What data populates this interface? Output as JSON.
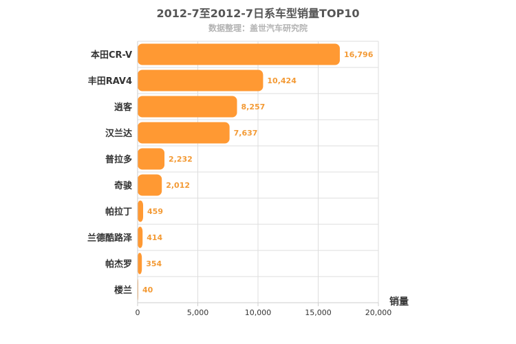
{
  "chart_data": {
    "type": "bar",
    "orientation": "horizontal",
    "title": "2012-7至2012-7日系车型销量TOP10",
    "subtitle": "数据整理：盖世汽车研究院",
    "categories": [
      "本田CR-V",
      "丰田RAV4",
      "逍客",
      "汉兰达",
      "普拉多",
      "奇骏",
      "帕拉丁",
      "兰德酷路泽",
      "帕杰罗",
      "楼兰"
    ],
    "values": [
      16796,
      10424,
      8257,
      7637,
      2232,
      2012,
      459,
      414,
      354,
      40
    ],
    "value_labels": [
      "16,796",
      "10,424",
      "8,257",
      "7,637",
      "2,232",
      "2,012",
      "459",
      "414",
      "354",
      "40"
    ],
    "xlabel": "销量",
    "xlim": [
      0,
      20000
    ],
    "ticks": [
      0,
      5000,
      10000,
      15000,
      20000
    ],
    "tick_labels": [
      "0",
      "5,000",
      "10,000",
      "15,000",
      "20,000"
    ],
    "bar_color": "#ff9933",
    "label_color": "#f39a35",
    "grid": true
  }
}
